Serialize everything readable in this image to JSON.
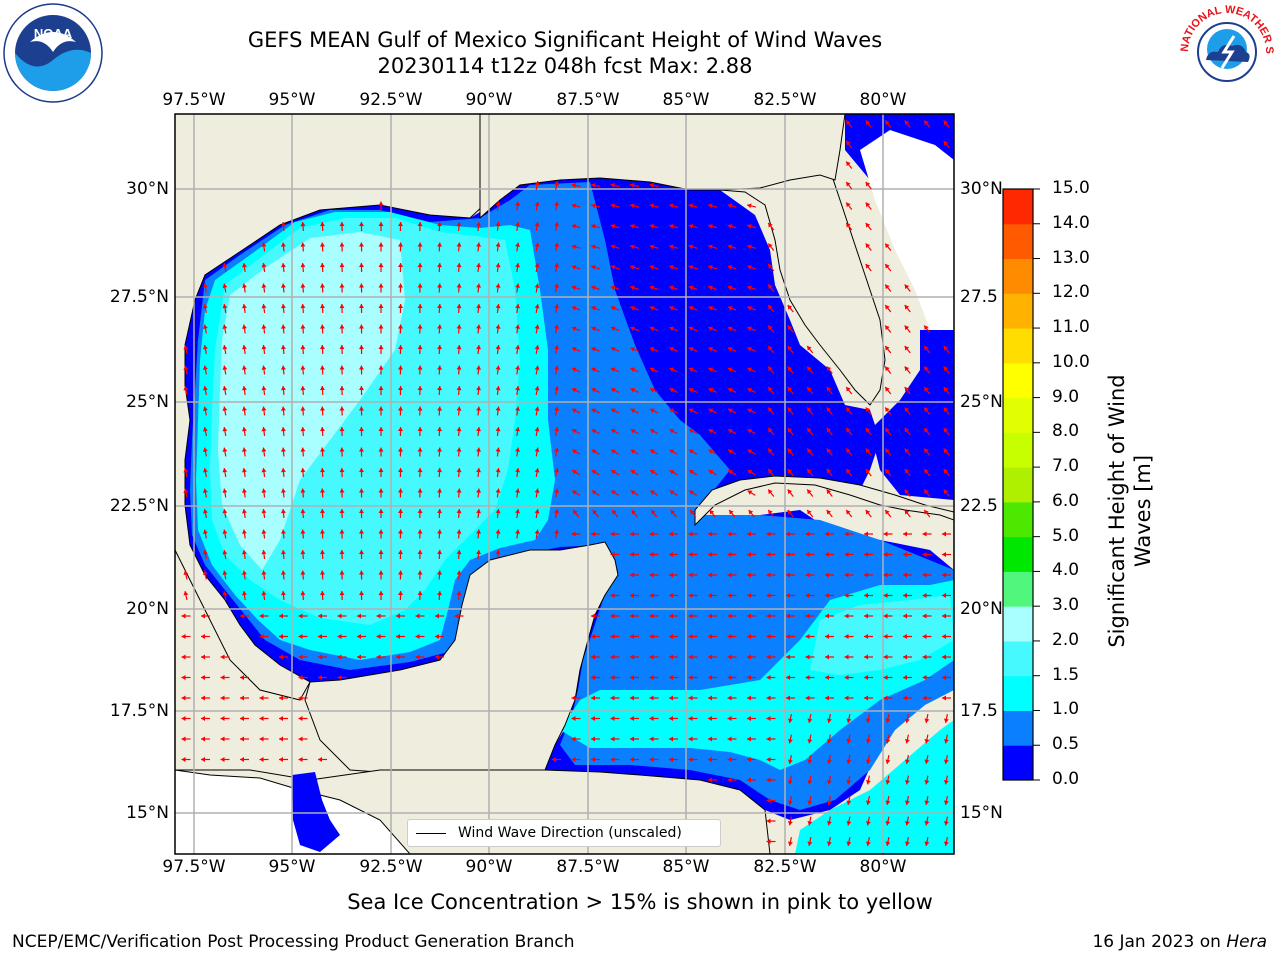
{
  "title": {
    "line1": "GEFS MEAN Gulf of Mexico Significant Height of Wind Waves",
    "line2": "20230114 t12z 048h fcst   Max: 2.88"
  },
  "axes": {
    "lon_labels": [
      "97.5°W",
      "95°W",
      "92.5°W",
      "90°W",
      "87.5°W",
      "85°W",
      "82.5°W",
      "80°W"
    ],
    "lat_labels_left": [
      "30°N",
      "27.5°N",
      "25°N",
      "22.5°N",
      "20°N",
      "17.5°N",
      "15°N"
    ],
    "lat_labels_right": [
      "30°N",
      "27.5",
      "25°N",
      "22.5",
      "20°N",
      "17.5",
      "15°N"
    ]
  },
  "colorbar": {
    "label": "Significant Height of Wind Waves [m]",
    "ticks": [
      "0.0",
      "0.5",
      "1.0",
      "1.5",
      "2.0",
      "3.0",
      "4.0",
      "5.0",
      "6.0",
      "7.0",
      "8.0",
      "9.0",
      "10.0",
      "11.0",
      "12.0",
      "13.0",
      "14.0",
      "15.0"
    ],
    "colors": [
      "#0000ff",
      "#0a7fff",
      "#00ffff",
      "#46f9ff",
      "#a9ffff",
      "#50f77c",
      "#00e800",
      "#4ce800",
      "#aef000",
      "#c8ff00",
      "#e1ff00",
      "#ffff00",
      "#ffdd00",
      "#ffb300",
      "#ff8c00",
      "#ff5a00",
      "#ff2800",
      "#ff0000"
    ]
  },
  "legend": {
    "label": "Wind Wave Direction (unscaled)"
  },
  "ice_note": "Sea Ice Concentration > 15% is shown in pink to yellow",
  "footer": {
    "left": "NCEP/EMC/Verification Post Processing Product Generation Branch",
    "date": "16 Jan 2023 on",
    "host": "Hera"
  },
  "logos": {
    "noaa": "NOAA",
    "nws": "NATIONAL WEATHER SERVICE"
  },
  "map_colors": {
    "land": "#efedde",
    "h_0_05": "#0000ff",
    "h_05_10": "#0a7fff",
    "h_10_15": "#00ffff",
    "h_15_20": "#46f9ff",
    "h_20_30": "#a9ffff",
    "arrow": "#ff0000",
    "grid": "#b0b0b0"
  }
}
